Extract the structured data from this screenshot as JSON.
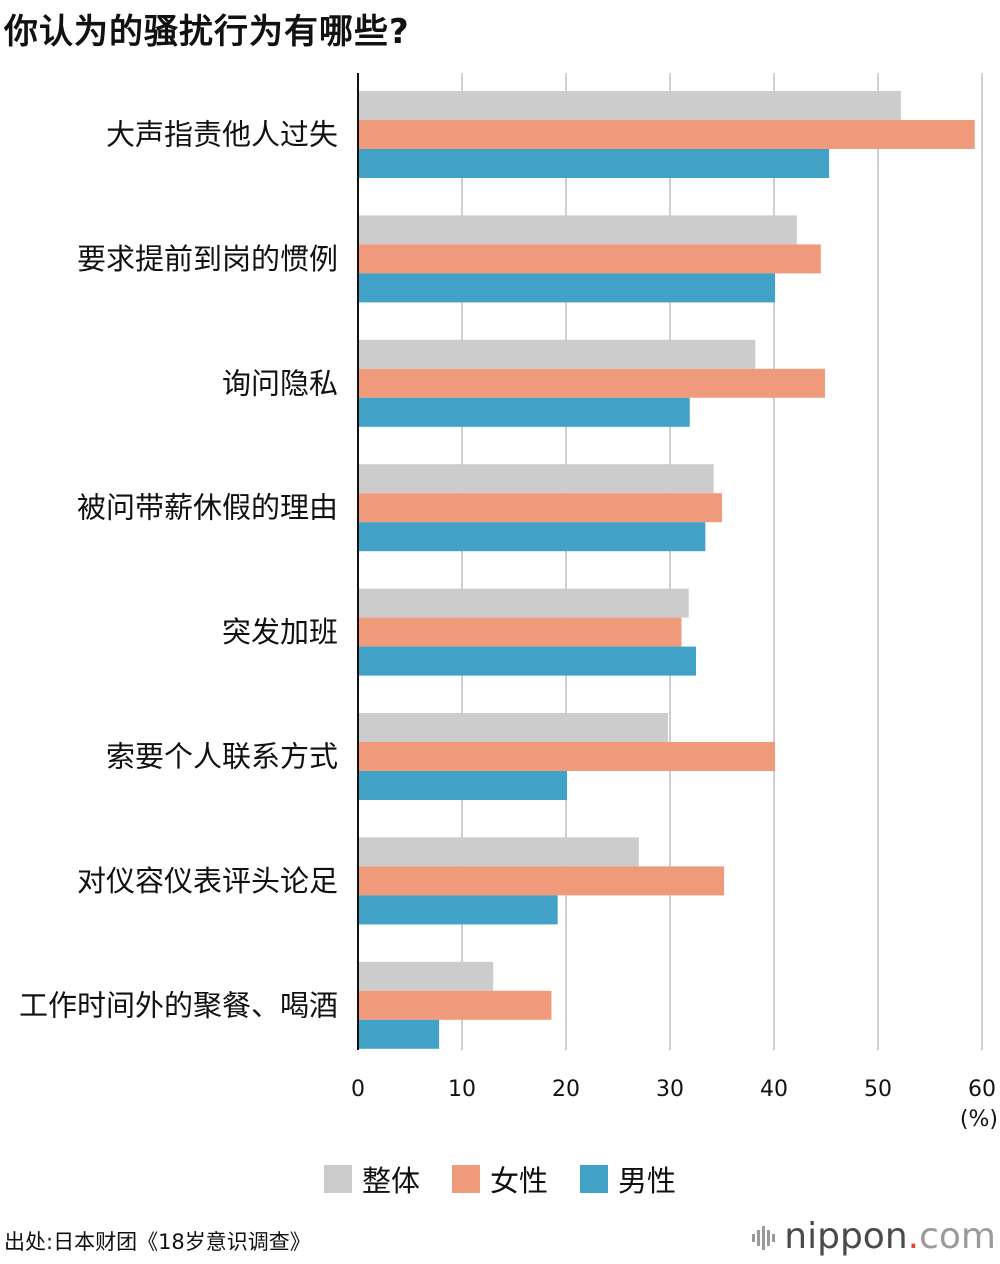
{
  "title": "你认为的骚扰行为有哪些?",
  "chart_data": {
    "type": "bar",
    "orientation": "horizontal",
    "categories": [
      "大声指责他人过失",
      "要求提前到岗的惯例",
      "询问隐私",
      "被问带薪休假的理由",
      "突发加班",
      "索要个人联系方式",
      "对仪容仪表评头论足",
      "工作时间外的聚餐、喝酒"
    ],
    "series": [
      {
        "name": "整体",
        "color": "#cccccc",
        "values": [
          52.2,
          42.2,
          38.2,
          34.2,
          31.8,
          29.8,
          27.0,
          13.0
        ]
      },
      {
        "name": "女性",
        "color": "#f09a7c",
        "values": [
          59.3,
          44.5,
          44.9,
          35.0,
          31.1,
          40.1,
          35.2,
          18.6
        ]
      },
      {
        "name": "男性",
        "color": "#41a1c6",
        "values": [
          45.3,
          40.1,
          31.9,
          33.4,
          32.5,
          20.1,
          19.2,
          7.8
        ]
      }
    ],
    "xlim": [
      0,
      60
    ],
    "xticks": [
      "0",
      "10",
      "20",
      "30",
      "40",
      "50",
      "60"
    ],
    "xunit": "(%)",
    "grid": true,
    "legend_position": "bottom-center"
  },
  "source": "出处:日本财团《18岁意识调查》",
  "brand": {
    "main": "nippon",
    "dot": ".",
    "suffix": "com"
  }
}
